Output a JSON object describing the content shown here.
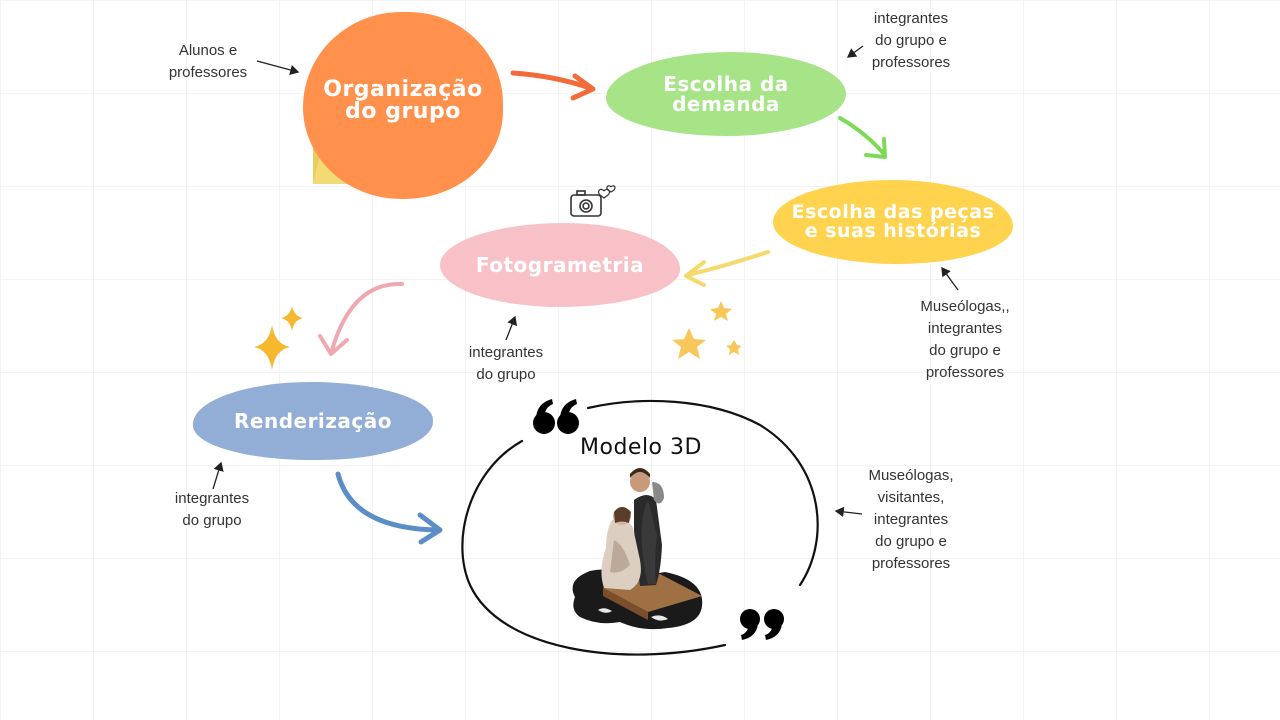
{
  "nodes": {
    "organizacao": {
      "label": "Organização\ndo grupo",
      "color": "#FF914D"
    },
    "escolha_demanda": {
      "label": "Escolha da\ndemanda",
      "color": "#A6E487"
    },
    "escolha_pecas": {
      "label": "Escolha das peças\ne suas histórias",
      "color": "#FFD34D"
    },
    "fotogrametria": {
      "label": "Fotogrametria",
      "color": "#F8C1C8"
    },
    "renderizacao": {
      "label": "Renderização",
      "color": "#92AED6"
    },
    "modelo_3d": {
      "label": "Modelo 3D"
    }
  },
  "notes": {
    "organizacao": "Alunos e\nprofessores",
    "escolha_demanda": "integrantes\ndo grupo e\nprofessores",
    "escolha_pecas": "Museólogas,,\nintegrantes\ndo grupo e\nprofessores",
    "fotogrametria": "integrantes\ndo grupo",
    "renderizacao": "integrantes\ndo grupo",
    "modelo_3d": "Museólogas,\nvisitantes,\nintegrantes\ndo grupo e\nprofessores"
  },
  "icons": [
    "folder-icon",
    "camera-icon",
    "sparkle-icon",
    "star-icon",
    "quote-open-icon",
    "quote-close-icon",
    "statue-image"
  ],
  "colors": {
    "arrow_orange": "#F26B3A",
    "arrow_green": "#7ED957",
    "arrow_yellow": "#F5D96B",
    "arrow_pink": "#F0A8B0",
    "arrow_blue": "#5B8EC4"
  }
}
